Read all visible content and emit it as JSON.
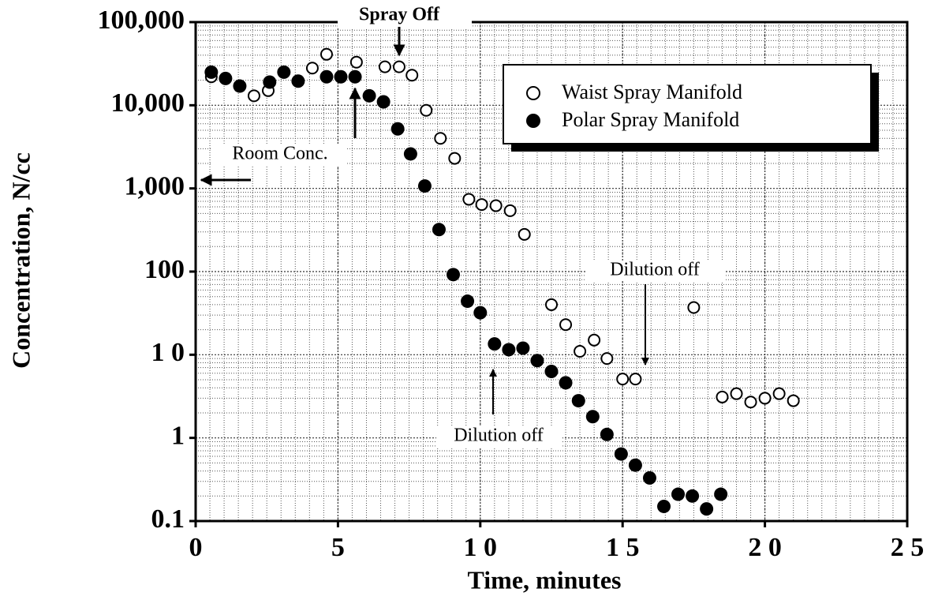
{
  "chart_data": {
    "type": "scatter",
    "x_label": "Time, minutes",
    "y_label": "Concentration, N/cc",
    "xlim": [
      0,
      25
    ],
    "ylim": [
      0.1,
      100000
    ],
    "log_y": true,
    "grid": true,
    "legend": "upper right",
    "xticks": [
      0,
      5,
      {
        "value": 10,
        "label": "1 0"
      },
      {
        "value": 15,
        "label": "1 5"
      },
      {
        "value": 20,
        "label": "2 0"
      },
      {
        "value": 25,
        "label": "2 5"
      }
    ],
    "yticks": [
      {
        "value": 0.1,
        "label": "0.1"
      },
      1,
      {
        "value": 10,
        "label": "1 0"
      },
      100,
      {
        "value": 1000,
        "label": "1,000"
      },
      {
        "value": 10000,
        "label": "10,000"
      },
      {
        "value": 100000,
        "label": "100,000"
      }
    ],
    "annotations": [
      "Spray Off",
      "Room Conc.",
      "Dilution off",
      "Dilution off"
    ],
    "series": [
      {
        "name": "Waist Spray Manifold",
        "color": "#000000",
        "marker": "open",
        "x": [
          0.55,
          2.05,
          2.55,
          4.1,
          4.6,
          5.65,
          6.65,
          7.15,
          7.6,
          8.1,
          8.6,
          9.1,
          9.6,
          10.05,
          10.55,
          11.05,
          11.55,
          12.5,
          13.0,
          13.5,
          14.0,
          14.45,
          15.0,
          15.45,
          17.5,
          18.5,
          19.0,
          19.5,
          20.0,
          20.5,
          21.0
        ],
        "values": [
          22000,
          13000,
          15000,
          28000,
          41000,
          33000,
          29000,
          29000,
          23000,
          8700,
          4000,
          2300,
          740,
          640,
          620,
          540,
          280,
          40,
          23,
          11,
          15,
          9,
          5.1,
          5.1,
          37,
          3.1,
          3.4,
          2.7,
          3.0,
          3.4,
          2.8
        ]
      },
      {
        "name": "Polar Spray Manifold",
        "color": "#000000",
        "marker": "filled",
        "x": [
          0.55,
          1.05,
          1.55,
          2.6,
          3.1,
          3.6,
          4.6,
          5.1,
          5.6,
          6.1,
          6.6,
          7.1,
          7.55,
          8.05,
          8.55,
          9.05,
          9.55,
          10.0,
          10.5,
          11.0,
          11.5,
          12.0,
          12.5,
          13.0,
          13.45,
          13.95,
          14.45,
          14.95,
          15.45,
          15.95,
          16.45,
          16.95,
          17.45,
          17.95,
          18.45
        ],
        "values": [
          25000,
          21000,
          17000,
          19000,
          25000,
          19500,
          22000,
          22000,
          22000,
          13000,
          11000,
          5200,
          2600,
          1070,
          320,
          92,
          44,
          32,
          13.5,
          11.5,
          12,
          8.5,
          6.3,
          4.6,
          2.8,
          1.8,
          1.1,
          0.64,
          0.47,
          0.33,
          0.15,
          0.21,
          0.2,
          0.14,
          0.21
        ]
      }
    ]
  }
}
